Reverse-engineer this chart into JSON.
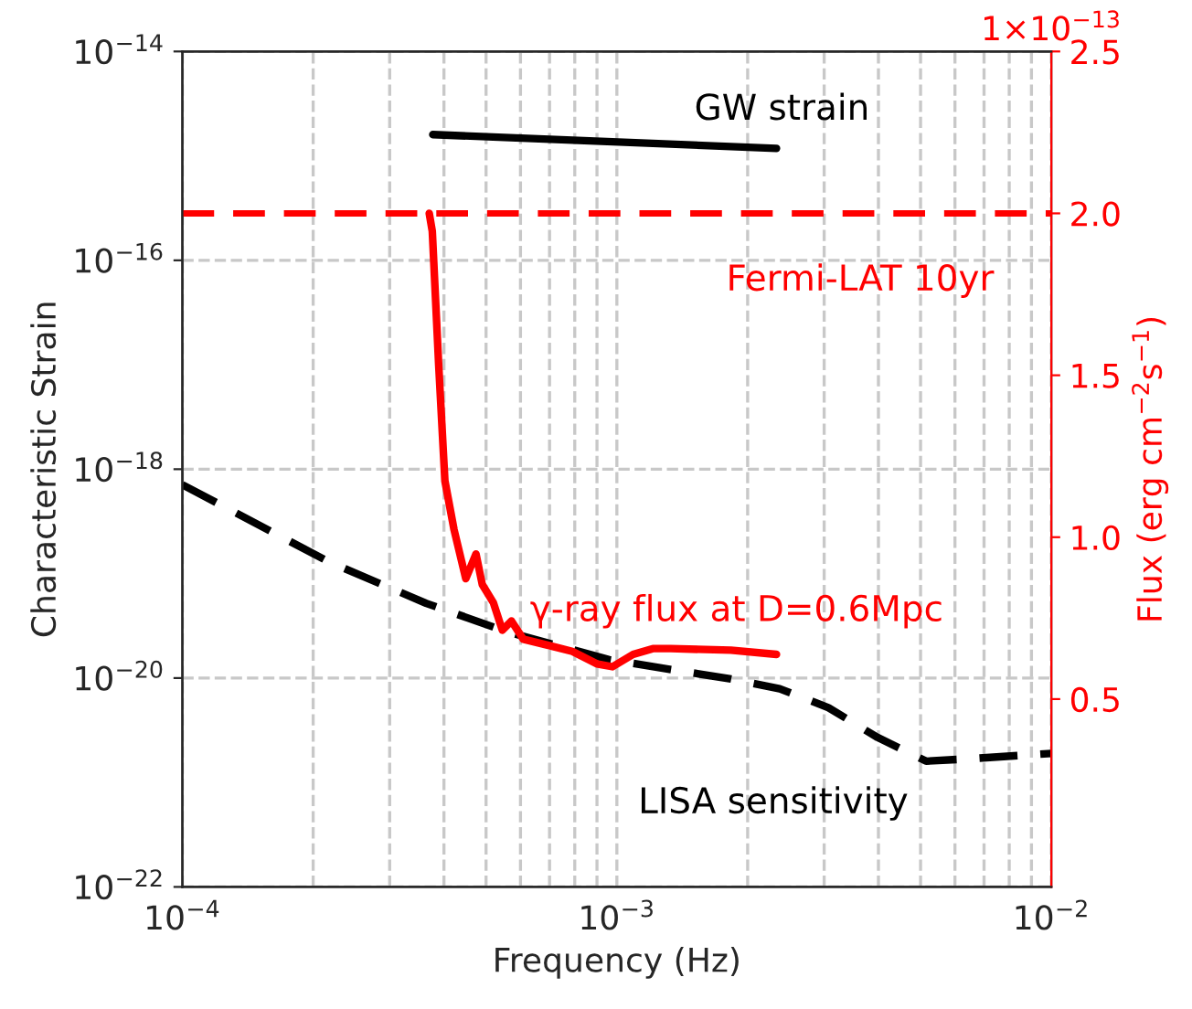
{
  "chart_data": {
    "type": "line",
    "xlabel": "Frequency (Hz)",
    "ylabel": "Characteristic Strain",
    "y2label": "Flux (erg cm$^{−2}$s$^{−1}$)",
    "log": "xy",
    "grid": true,
    "xlim": [
      0.0001,
      0.01
    ],
    "xticks": [
      {
        "value": 0.0001,
        "label": "10$^{−4}$"
      },
      {
        "value": 0.001,
        "label": "10$^{−3}$"
      },
      {
        "value": 0.01,
        "label": "10$^{−2}$"
      }
    ],
    "ylim": [
      1e-22,
      1e-14
    ],
    "yticks": [
      {
        "value": 1e-22,
        "label": "10$^{−22}$"
      },
      {
        "value": 1e-20,
        "label": "10$^{−20}$"
      },
      {
        "value": 1e-18,
        "label": "10$^{−18}$"
      },
      {
        "value": 1e-16,
        "label": "10$^{−16}$"
      },
      {
        "value": 1e-14,
        "label": "10$^{−14}$"
      }
    ],
    "y2lim": [
      -0.08,
      2.5
    ],
    "y2ticks": [
      0.5,
      {
        "value": 1.0,
        "label": "1.0"
      },
      1.5,
      {
        "value": 2.0,
        "label": "2.0"
      },
      2.5
    ],
    "series": [
      {
        "name": "GW strain",
        "color": "#000000",
        "line_style": "solid",
        "x": [
          0.000377,
          0.00233
        ],
        "values": [
          1.6e-15,
          1.18e-15
        ]
      },
      {
        "name": "LISA sensitivity",
        "color": "#000000",
        "line_style": "dashed",
        "x": [
          0.0001,
          0.000217,
          0.000364,
          0.000555,
          0.00096,
          0.00183,
          0.00237,
          0.00307,
          0.00398,
          0.00515,
          0.00669,
          0.01
        ],
        "values": [
          7.1e-19,
          1.3e-19,
          5.2e-20,
          2.8e-20,
          1.5e-20,
          9.8e-21,
          7.9e-21,
          5.2e-21,
          2.7e-21,
          1.6e-21,
          1.7e-21,
          1.9e-21
        ]
      },
      {
        "name": "γ-ray flux at D=0.6Mpc",
        "color": "#ff0000",
        "line_style": "solid",
        "axis": "y2",
        "x": [
          0.00037,
          0.000376,
          0.000389,
          0.000402,
          0.000422,
          0.000449,
          0.000474,
          0.00049,
          0.00052,
          0.000545,
          0.000572,
          0.000609,
          0.000696,
          0.00079,
          0.000899,
          0.000977,
          0.00109,
          0.00121,
          0.00133,
          0.00183,
          0.00233
        ],
        "values": [
          2.0,
          1.945,
          1.531,
          1.174,
          1.023,
          0.872,
          0.948,
          0.854,
          0.797,
          0.713,
          0.741,
          0.685,
          0.666,
          0.647,
          0.609,
          0.6,
          0.638,
          0.656,
          0.656,
          0.651,
          0.638
        ]
      }
    ],
    "ref_lines": [
      {
        "axis": "y2",
        "value": 2.0,
        "label": "Fermi-LAT 10yr",
        "color": "#ff0000",
        "line_style": "dashed"
      }
    ],
    "annotations": [
      "1×10$^{−13}$"
    ]
  }
}
